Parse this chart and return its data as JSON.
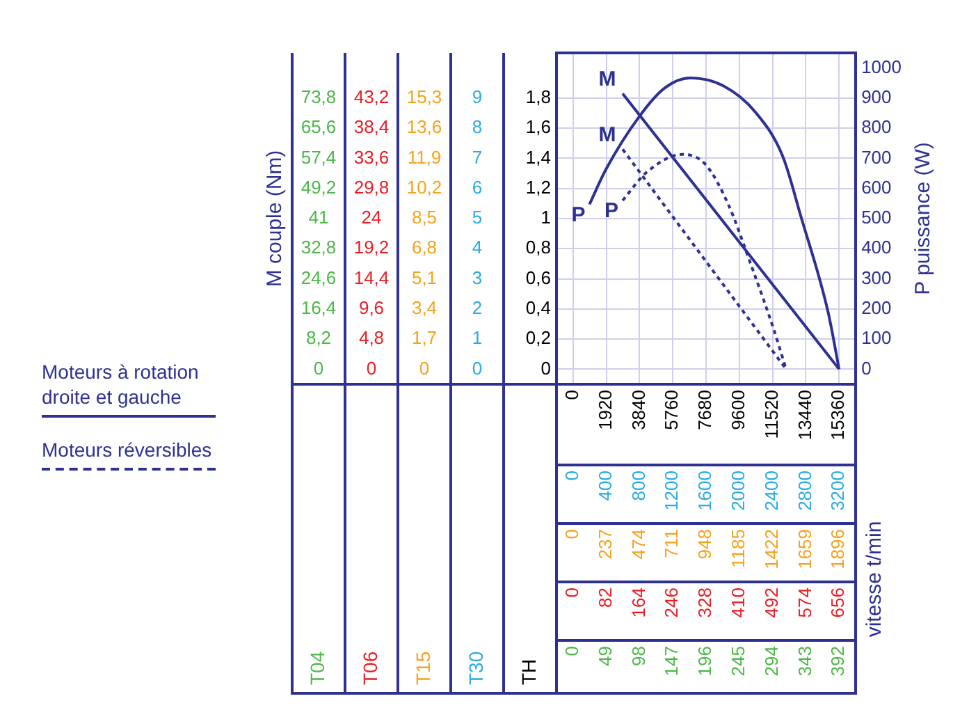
{
  "chart_data": {
    "type": "line",
    "y2label": "P puissance (W)",
    "annotations": [
      "vitesse t/min",
      "Moteurs à rotation droite et gauche",
      "Moteurs réversibles",
      "M couple (Nm)",
      "T04",
      "T06",
      "T15",
      "T30",
      "TH",
      "0",
      "8,2",
      "16,4",
      "24,6",
      "32,8",
      "41",
      "49,2",
      "57,4",
      "65,6",
      "73,8",
      "0",
      "4,8",
      "9,6",
      "14,4",
      "19,2",
      "24",
      "29,8",
      "33,6",
      "38,4",
      "43,2",
      "0",
      "1,7",
      "3,4",
      "5,1",
      "6,8",
      "8,5",
      "10,2",
      "11,9",
      "13,6",
      "15,3",
      "0",
      "1",
      "2",
      "3",
      "4",
      "5",
      "6",
      "7",
      "8",
      "9",
      "0",
      "237",
      "474",
      "711",
      "948",
      "1185",
      "1422",
      "1659",
      "1896",
      "0",
      "82",
      "164",
      "246",
      "328",
      "410",
      "492",
      "574",
      "656",
      "0",
      "49",
      "98",
      "147",
      "196",
      "245",
      "294",
      "343",
      "392"
    ],
    "series": [
      {
        "name": "M",
        "color": "#2e3192",
        "line_style": "solid",
        "x": [
          2860,
          15360
        ],
        "values": [
          1.83,
          0
        ]
      },
      {
        "name": "P",
        "color": "#2e3192",
        "axis": "y2",
        "line_style": "solid",
        "x": [
          945,
          1865,
          3836,
          5280,
          6750,
          8690,
          10530,
          12105,
          13155,
          14730,
          15360
        ],
        "values": [
          547,
          660,
          840,
          933,
          967,
          940,
          853,
          707,
          507,
          188,
          0
        ]
      },
      {
        "name": "M",
        "color": "#2e3192",
        "line_style": "dashed",
        "x": [
          2860,
          12300
        ],
        "values": [
          1.46,
          0
        ]
      },
      {
        "name": "P",
        "color": "#2e3192",
        "axis": "y2",
        "line_style": "dashed",
        "x": [
          2860,
          4230,
          6330,
          7640,
          8960,
          10270,
          11580,
          12300
        ],
        "values": [
          560,
          653,
          713,
          680,
          547,
          347,
          133,
          0
        ]
      }
    ],
    "xlim": [
      -960,
      16320
    ],
    "xticks": [
      0,
      1920,
      3840,
      5760,
      7680,
      9600,
      11520,
      13440,
      15360
    ],
    "x2lim": [
      -200,
      3400
    ],
    "x2ticks": [
      0,
      400,
      800,
      1200,
      1600,
      2000,
      2400,
      2800,
      3200
    ],
    "y2lim": [
      -50,
      1050
    ],
    "y2ticks": [
      0,
      100,
      200,
      300,
      400,
      500,
      600,
      700,
      800,
      900,
      1000
    ],
    "ylim": [
      -0.1,
      2.1
    ],
    "yticks": [
      0,
      {
        "value": 0.2,
        "label": "0,2"
      },
      {
        "value": 0.4,
        "label": "0,4"
      },
      {
        "value": 0.6,
        "label": "0,6"
      },
      {
        "value": 0.8,
        "label": "0,8"
      },
      1,
      {
        "value": 1.2,
        "label": "1,2"
      },
      {
        "value": 1.4,
        "label": "1,4"
      },
      {
        "value": 1.6,
        "label": "1,6"
      },
      {
        "value": 1.8,
        "label": "1,8"
      }
    ],
    "grid": true
  }
}
